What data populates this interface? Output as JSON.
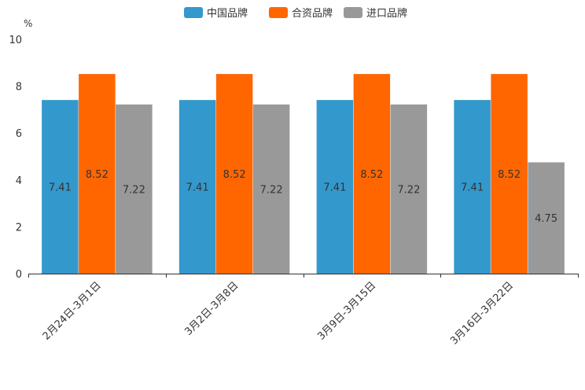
{
  "chart_data": {
    "type": "bar",
    "categories": [
      "2月24日-3月1日",
      "3月2日-3月8日",
      "3月9日-3月15日",
      "3月16日-3月22日"
    ],
    "series": [
      {
        "name": "中国品牌",
        "color": "#3398cc",
        "values": [
          7.41,
          7.41,
          7.41,
          7.41
        ]
      },
      {
        "name": "合资品牌",
        "color": "#ff6600",
        "values": [
          8.52,
          8.52,
          8.52,
          8.52
        ]
      },
      {
        "name": "进口品牌",
        "color": "#999999",
        "values": [
          7.22,
          7.22,
          7.22,
          4.75
        ]
      }
    ],
    "title": "",
    "xlabel": "",
    "ylabel": "%",
    "ylim": [
      0,
      10
    ],
    "yticks": [
      "0",
      "2",
      "4",
      "6",
      "8",
      "10"
    ],
    "legend_position": "top-center",
    "grid": false
  }
}
